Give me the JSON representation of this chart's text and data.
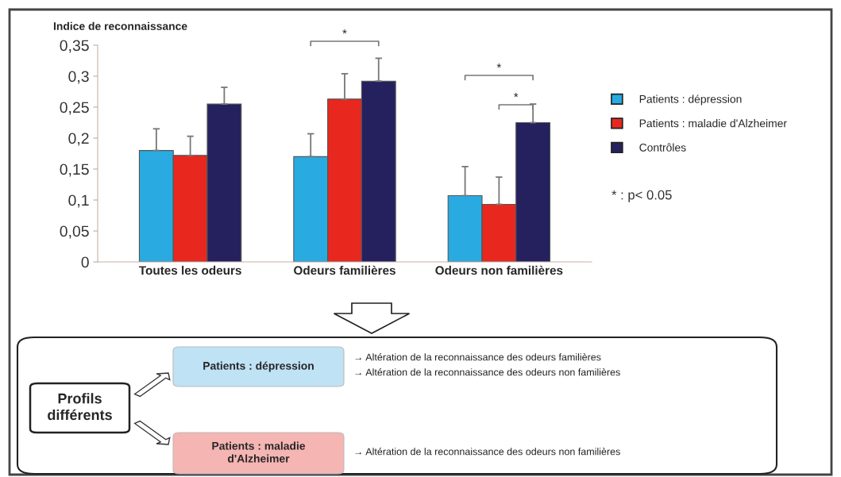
{
  "chart_data": {
    "type": "bar",
    "ylabel": "Indice de reconnaissance",
    "categories": [
      "Toutes les odeurs",
      "Odeurs familières",
      "Odeurs non familières"
    ],
    "series": [
      {
        "name": "Patients : dépression",
        "color": "#29abe2",
        "values": [
          0.18,
          0.17,
          0.107
        ],
        "errors": [
          [
            0.18,
            0.215
          ],
          [
            0.17,
            0.207
          ],
          [
            0.107,
            0.154
          ]
        ]
      },
      {
        "name": "Patients : maladie d'Alzheimer",
        "color": "#e8281e",
        "values": [
          0.172,
          0.263,
          0.093
        ],
        "errors": [
          [
            0.172,
            0.203
          ],
          [
            0.263,
            0.304
          ],
          [
            0.093,
            0.137
          ]
        ]
      },
      {
        "name": "Contrôles",
        "color": "#25215f",
        "values": [
          0.255,
          0.292,
          0.225
        ],
        "errors": [
          [
            0.255,
            0.282
          ],
          [
            0.292,
            0.329
          ],
          [
            0.225,
            0.255
          ]
        ]
      }
    ],
    "ylim": [
      0,
      0.35
    ],
    "yticks": [
      {
        "value": 0,
        "label": "0"
      },
      {
        "value": 0.05,
        "label": "0,05"
      },
      {
        "value": 0.1,
        "label": "0,1"
      },
      {
        "value": 0.15,
        "label": "0,15"
      },
      {
        "value": 0.2,
        "label": "0,2"
      },
      {
        "value": 0.25,
        "label": "0,25"
      },
      {
        "value": 0.3,
        "label": "0,3"
      },
      {
        "value": 0.35,
        "label": "0,35"
      }
    ],
    "grid": false,
    "legend": "right",
    "annotations": [
      "*",
      "*",
      "*",
      "* : p< 0.05",
      "Profils\ndifférents",
      "Patients : dépression",
      "Patients : maladie\nd'Alzheimer",
      "→ Altération de la reconnaissance des odeurs familières",
      "→ Altération de la reconnaissance des odeurs non familières",
      "→ Altération de la reconnaissance des odeurs non familières"
    ]
  }
}
